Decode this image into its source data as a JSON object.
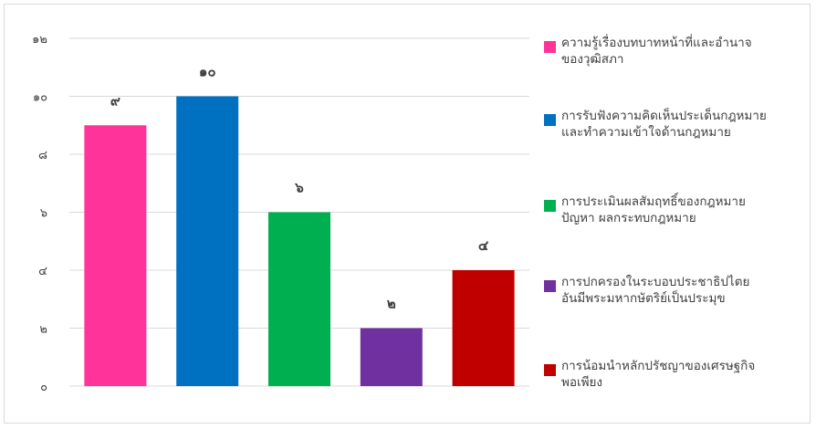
{
  "chart_data": {
    "type": "bar",
    "categories": [
      [
        "ความรู้เรื่องบทบาทหน้าที่และอำนาจ",
        "ของวุฒิสภา"
      ],
      [
        "การรับฟังความคิดเห็นประเด็นกฎหมาย",
        "และทำความเข้าใจด้านกฎหมาย"
      ],
      [
        "การประเมินผลสัมฤทธิ์ของกฎหมาย",
        "ปัญหา ผลกระทบกฎหมาย"
      ],
      [
        "การปกครองในระบอบประชาธิปไตย",
        "อันมีพระมหากษัตริย์เป็นประมุข"
      ],
      [
        "การน้อมนำหลักปรัชญาของเศรษฐกิจ",
        "พอเพียง"
      ]
    ],
    "values": [
      9,
      10,
      6,
      2,
      4
    ],
    "value_labels": [
      "๙",
      "๑๐",
      "๖",
      "๒",
      "๔"
    ],
    "colors": [
      "#ff3399",
      "#0070c0",
      "#00b050",
      "#7030a0",
      "#c00000"
    ],
    "ylim": [
      0,
      12
    ],
    "yticks": [
      0,
      2,
      4,
      6,
      8,
      10,
      12
    ],
    "ytick_labels": [
      "๐",
      "๒",
      "๔",
      "๖",
      "๘",
      "๑๐",
      "๑๒"
    ],
    "grid": true,
    "legend_position": "right"
  }
}
